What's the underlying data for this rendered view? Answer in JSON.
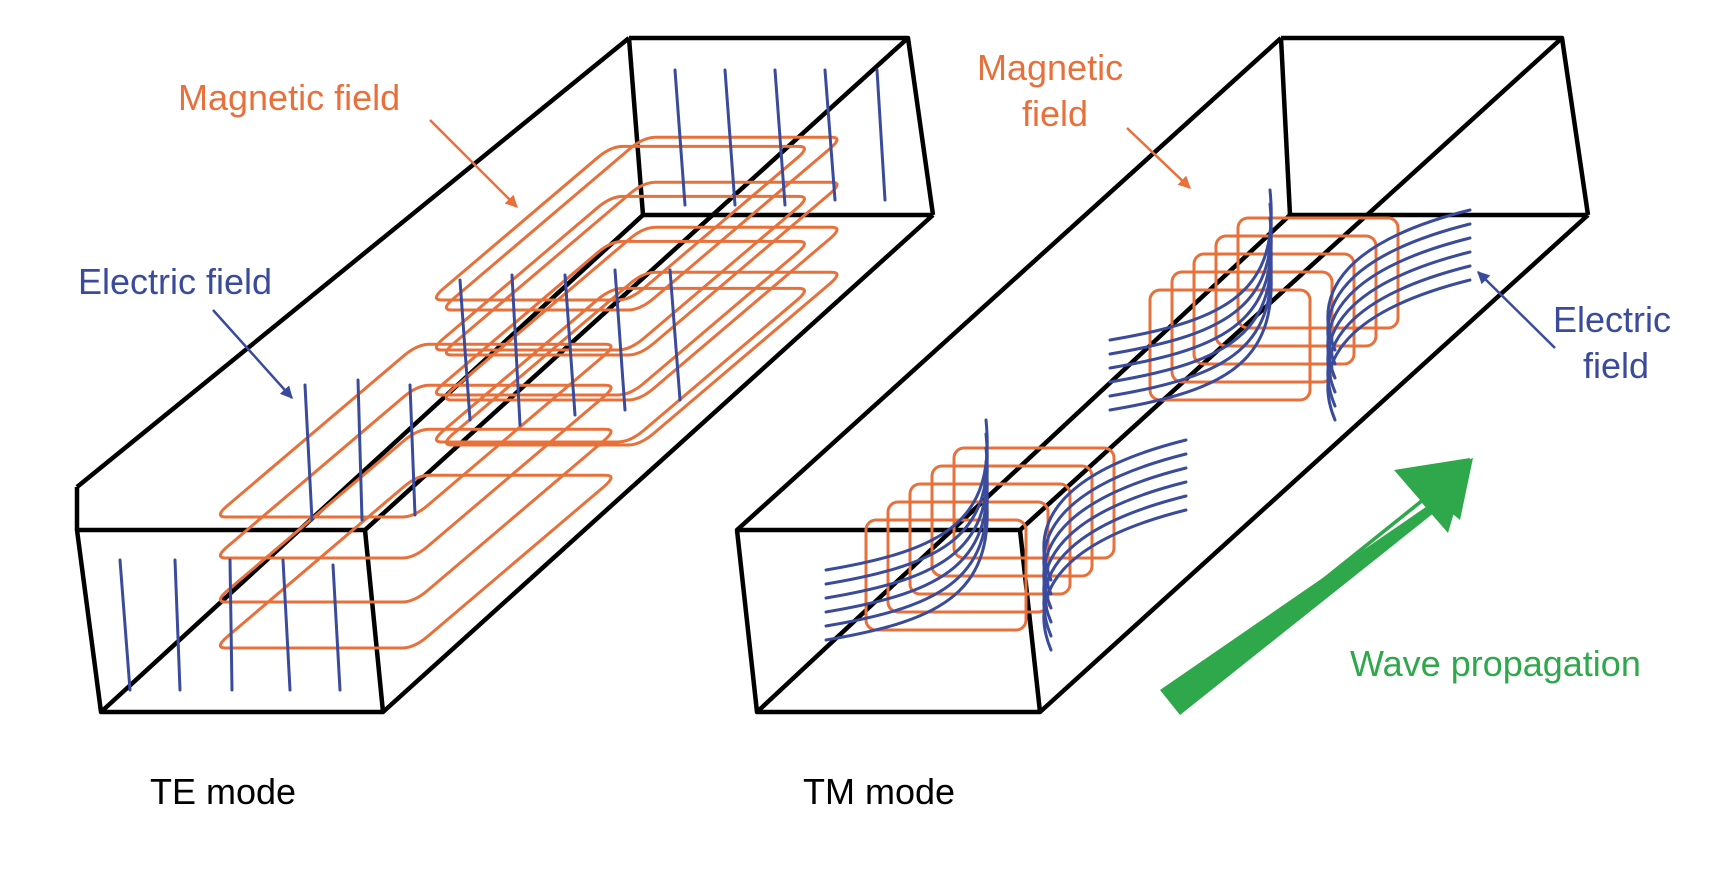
{
  "colors": {
    "magnetic": "#E8703A",
    "electric": "#3A4B9C",
    "propagation": "#2EA84A",
    "edge": "#000000"
  },
  "labels": {
    "te_magnetic": "Magnetic field",
    "te_electric": "Electric field",
    "tm_magnetic_line1": "Magnetic",
    "tm_magnetic_line2": "field",
    "tm_electric_line1": "Electric",
    "tm_electric_line2": "field",
    "propagation": "Wave propagation",
    "te_mode": "TE mode",
    "tm_mode": "TM mode"
  }
}
